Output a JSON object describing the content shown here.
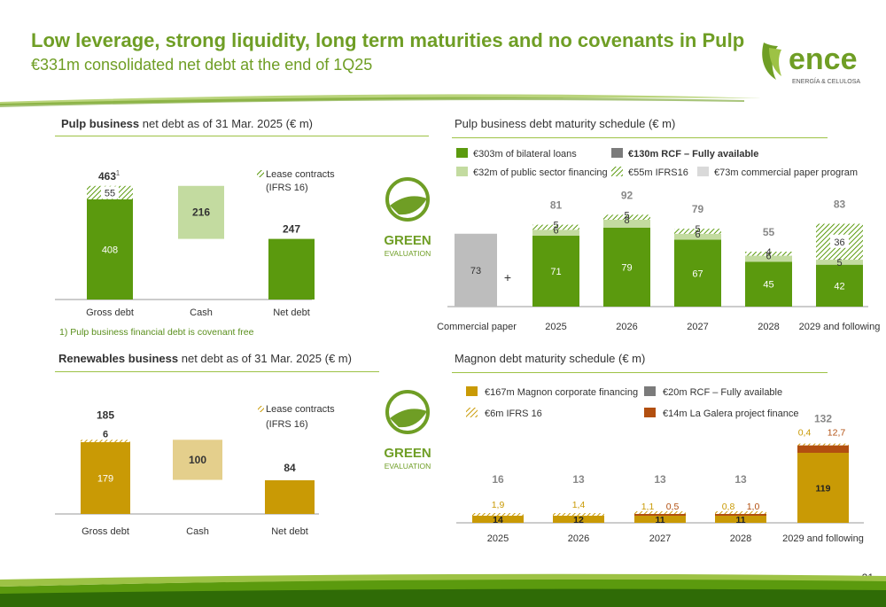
{
  "title": "Low leverage, strong liquidity, long term maturities and no covenants in Pulp",
  "subtitle": "€331m consolidated net debt at the end of 1Q25",
  "logo": {
    "word": "ence",
    "tagline": "ENERGÍA & CELULOSA",
    "color": "#6f9e25"
  },
  "badge": {
    "word1": "GREEN",
    "word2": "EVALUATION",
    "color": "#6f9e25"
  },
  "page_number": "21",
  "footnote": "1) Pulp business financial debt is covenant free",
  "colors": {
    "green": "#5b9a0e",
    "light_green": "#c3dba0",
    "gray": "#bdbdbd",
    "gold": "#c99a05",
    "rust": "#b24f10",
    "dark_gray": "#7b7b7b"
  },
  "sections": {
    "pulp_net": {
      "bold": "Pulp business",
      "rest": " net debt as of 31 Mar. 2025 (€ m)"
    },
    "pulp_sched": {
      "bold": "",
      "rest": "Pulp business debt maturity schedule (€ m)"
    },
    "ren_net": {
      "bold": "Renewables business",
      "rest": " net debt as of 31 Mar. 2025 (€ m)"
    },
    "mag_sched": {
      "bold": "",
      "rest": "Magnon debt maturity schedule (€ m)"
    }
  },
  "chart_data": [
    {
      "id": "pulp_net_debt",
      "type": "bar",
      "title": "Pulp business net debt as of 31 Mar. 2025 (€ m)",
      "categories": [
        "Gross debt",
        "Cash",
        "Net debt"
      ],
      "series": [
        {
          "name": "Debt",
          "values": [
            408,
            216,
            247
          ]
        },
        {
          "name": "Lease contracts (IFRS 16)",
          "values": [
            55,
            0,
            0
          ]
        }
      ],
      "totals": [
        "463",
        "",
        ""
      ],
      "total_superscript": "1",
      "legend": "Lease contracts\n(IFRS 16)",
      "ylim": [
        0,
        520
      ]
    },
    {
      "id": "pulp_maturity",
      "type": "bar",
      "title": "Pulp business debt maturity schedule (€ m)",
      "categories": [
        "Commercial paper",
        "2025",
        "2026",
        "2027",
        "2028",
        "2029 and following"
      ],
      "series": [
        {
          "name": "€303m of bilateral loans",
          "values": [
            0,
            71,
            79,
            67,
            45,
            42
          ]
        },
        {
          "name": "€32m of public sector financing",
          "values": [
            0,
            6,
            8,
            6,
            6,
            5
          ]
        },
        {
          "name": "€130m RCF – Fully available",
          "values": [
            0,
            0,
            0,
            0,
            0,
            0
          ]
        },
        {
          "name": "€55m IFRS16",
          "values": [
            0,
            5,
            5,
            5,
            4,
            36
          ]
        },
        {
          "name": "€73m commercial paper program",
          "values": [
            73,
            0,
            0,
            0,
            0,
            0
          ]
        }
      ],
      "totals": [
        "",
        "81",
        "92",
        "79",
        "55",
        "83"
      ],
      "plus_sign": "+",
      "ylim": [
        0,
        100
      ]
    },
    {
      "id": "ren_net_debt",
      "type": "bar",
      "title": "Renewables business net debt as of 31 Mar. 2025 (€ m)",
      "categories": [
        "Gross debt",
        "Cash",
        "Net debt"
      ],
      "series": [
        {
          "name": "Debt",
          "values": [
            179,
            100,
            84
          ]
        },
        {
          "name": "Lease contracts (IFRS 16)",
          "values": [
            6,
            0,
            0
          ]
        }
      ],
      "totals": [
        "185",
        "",
        ""
      ],
      "legend": "Lease contracts\n(IFRS 16)",
      "ylim": [
        0,
        210
      ]
    },
    {
      "id": "magnon_maturity",
      "type": "bar",
      "title": "Magnon debt maturity schedule (€ m)",
      "categories": [
        "2025",
        "2026",
        "2027",
        "2028",
        "2029 and following"
      ],
      "series": [
        {
          "name": "€167m Magnon corporate financing",
          "values": [
            14,
            12,
            11,
            11,
            119
          ]
        },
        {
          "name": "€6m IFRS 16",
          "values": [
            1.9,
            1.4,
            1.1,
            0.8,
            0.4
          ]
        },
        {
          "name": "€20m RCF – Fully available",
          "values": [
            0,
            0,
            0,
            0,
            0
          ]
        },
        {
          "name": "€14m La Galera project finance",
          "values": [
            0,
            0,
            0.5,
            1.0,
            12.7
          ]
        }
      ],
      "labels": {
        "ifrs": [
          "1,9",
          "1,4",
          "1,1",
          "0,8",
          "0,4"
        ],
        "galera": [
          "",
          "",
          "0,5",
          "1,0",
          "12,7"
        ],
        "corp": [
          "14",
          "12",
          "11",
          "11",
          "119"
        ]
      },
      "totals": [
        "16",
        "13",
        "13",
        "13",
        "132"
      ],
      "ylim": [
        0,
        140
      ]
    }
  ]
}
